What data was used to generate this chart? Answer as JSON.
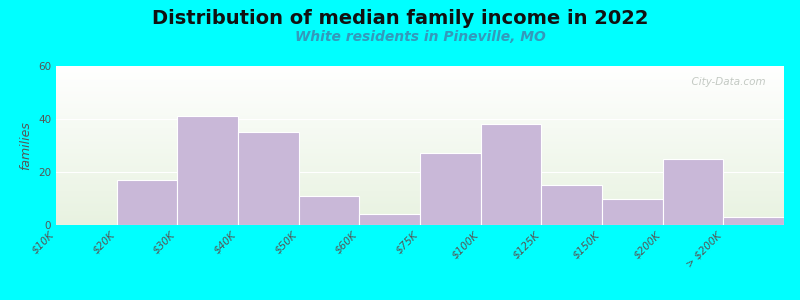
{
  "title": "Distribution of median family income in 2022",
  "subtitle": "White residents in Pineville, MO",
  "ylabel": "families",
  "background_color": "#00FFFF",
  "bar_color": "#c9b8d8",
  "bar_edgecolor": "#ffffff",
  "categories": [
    "$10K",
    "$20K",
    "$30K",
    "$40K",
    "$50K",
    "$60K",
    "$75K",
    "$100K",
    "$125K",
    "$150K",
    "$200K",
    "> $200K"
  ],
  "values": [
    0,
    17,
    41,
    35,
    11,
    4,
    27,
    38,
    15,
    10,
    25,
    3
  ],
  "ylim": [
    0,
    60
  ],
  "yticks": [
    0,
    20,
    40,
    60
  ],
  "title_fontsize": 14,
  "subtitle_fontsize": 10,
  "subtitle_color": "#3399bb",
  "watermark": "  City-Data.com",
  "ylabel_fontsize": 9,
  "tick_fontsize": 7.5
}
